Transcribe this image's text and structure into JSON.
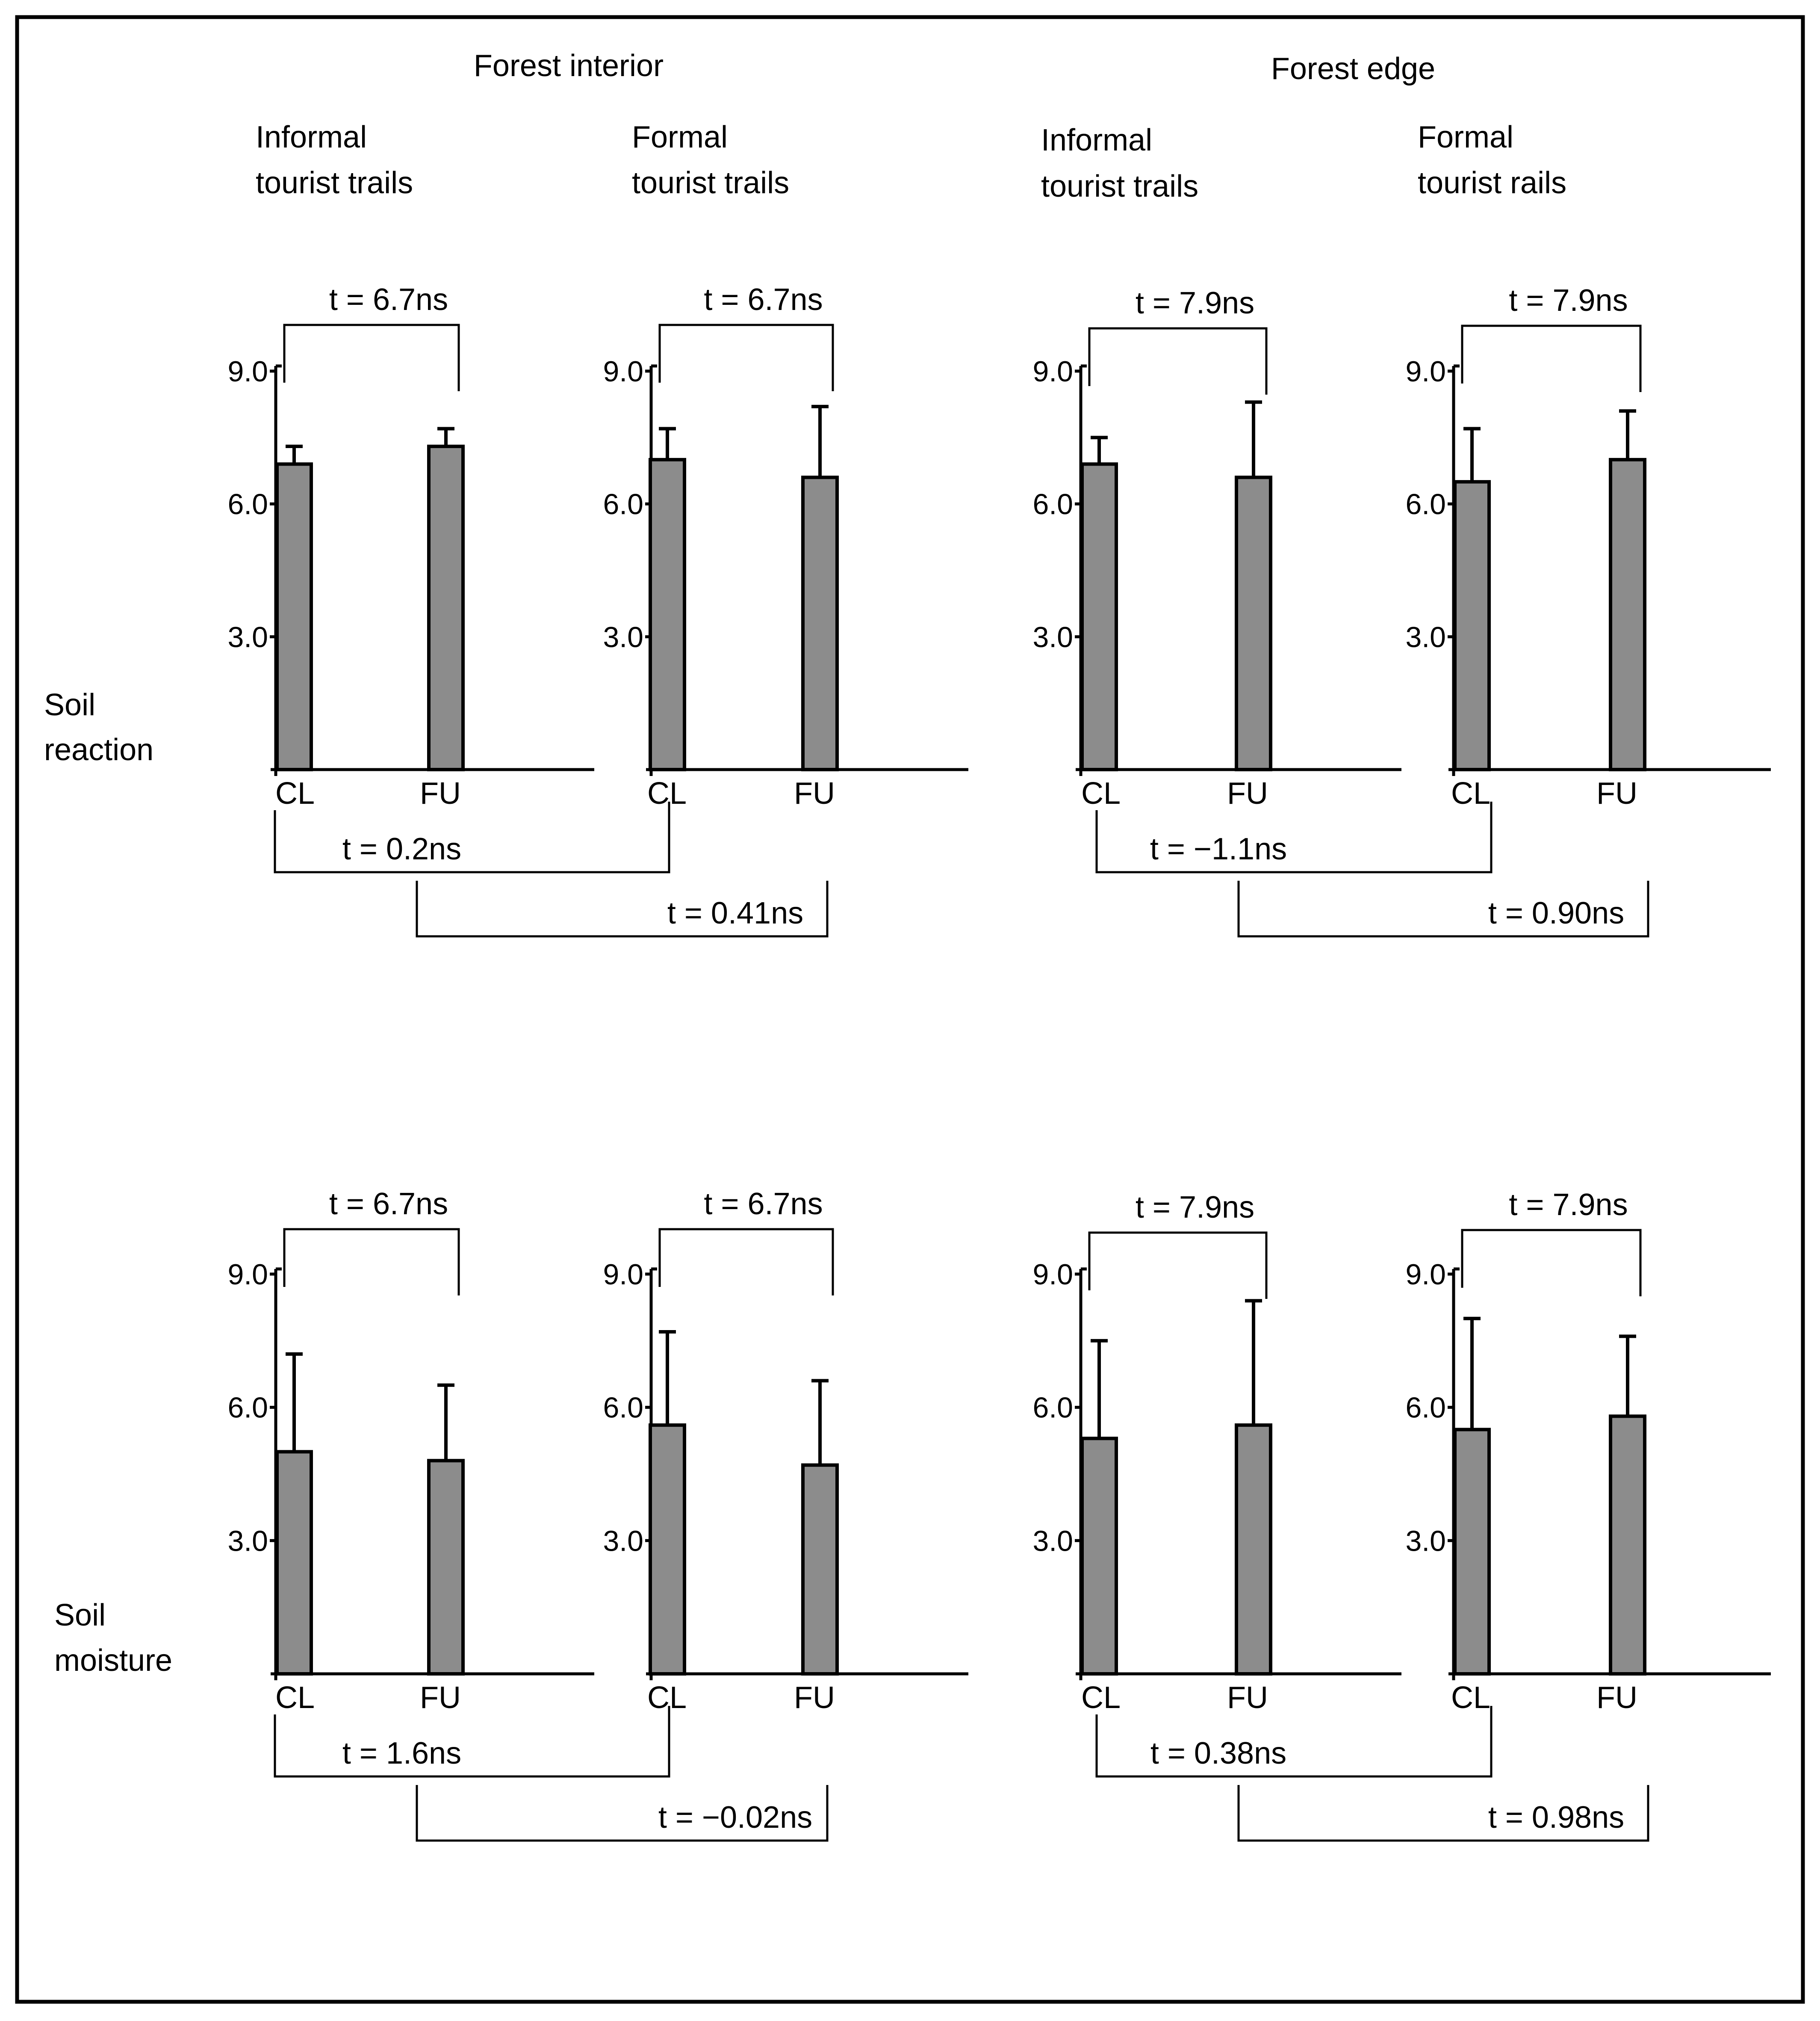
{
  "headers": {
    "forest_interior": "Forest  interior",
    "forest_edge": "Forest edge",
    "fi_informal": [
      "Informal",
      "tourist trails"
    ],
    "fi_formal": [
      "Formal",
      "tourist trails"
    ],
    "fe_informal": [
      "Informal",
      "tourist trails"
    ],
    "fe_formal": [
      "Formal",
      "tourist rails"
    ]
  },
  "row_labels": {
    "soil_reaction": [
      "Soil",
      "reaction"
    ],
    "soil_moisture": [
      "Soil",
      "moisture"
    ]
  },
  "chart_data": [
    {
      "type": "bar",
      "title": "Soil reaction",
      "groups": [
        "Forest interior",
        "Forest edge"
      ],
      "ylim": [
        0,
        9.0
      ],
      "yticks": [
        "3.0",
        "6.0",
        "9.0"
      ],
      "panels": [
        {
          "name": "Informal tourist trails (interior)",
          "categories": [
            "CL",
            "FU"
          ],
          "values": [
            6.9,
            7.3
          ],
          "errors": [
            0.4,
            0.4
          ],
          "t_test": "t = 6.7ns"
        },
        {
          "name": "Formal tourist trails (interior)",
          "categories": [
            "CL",
            "FU"
          ],
          "values": [
            7.0,
            6.6
          ],
          "errors": [
            0.7,
            1.6
          ],
          "t_test": "t = 6.7ns"
        },
        {
          "name": "Informal tourist trails (edge)",
          "categories": [
            "CL",
            "FU"
          ],
          "values": [
            6.9,
            6.6
          ],
          "errors": [
            0.6,
            1.7
          ],
          "t_test": "t = 7.9ns"
        },
        {
          "name": "Formal tourist rails (edge)",
          "categories": [
            "CL",
            "FU"
          ],
          "values": [
            6.5,
            7.0
          ],
          "errors": [
            1.2,
            1.1
          ],
          "t_test": "t = 7.9ns"
        }
      ],
      "cross_tests": [
        "t = 0.2ns",
        "t = 0.41ns",
        "t = −1.1ns",
        "t = 0.90ns"
      ]
    },
    {
      "type": "bar",
      "title": "Soil moisture",
      "groups": [
        "Forest interior",
        "Forest edge"
      ],
      "ylim": [
        0,
        9.0
      ],
      "yticks": [
        "3.0",
        "6.0",
        "9.0"
      ],
      "panels": [
        {
          "name": "Informal tourist trails (interior)",
          "categories": [
            "CL",
            "FU"
          ],
          "values": [
            5.0,
            4.8
          ],
          "errors": [
            2.2,
            1.7
          ],
          "t_test": "t = 6.7ns"
        },
        {
          "name": "Formal tourist trails (interior)",
          "categories": [
            "CL",
            "FU"
          ],
          "values": [
            5.6,
            4.7
          ],
          "errors": [
            2.1,
            1.9
          ],
          "t_test": "t = 6.7ns"
        },
        {
          "name": "Informal tourist trails (edge)",
          "categories": [
            "CL",
            "FU"
          ],
          "values": [
            5.3,
            5.6
          ],
          "errors": [
            2.2,
            2.8
          ],
          "t_test": "t = 7.9ns"
        },
        {
          "name": "Formal tourist rails (edge)",
          "categories": [
            "CL",
            "FU"
          ],
          "values": [
            5.5,
            5.8
          ],
          "errors": [
            2.5,
            1.8
          ],
          "t_test": "t = 7.9ns"
        }
      ],
      "cross_tests": [
        "t = 1.6ns",
        "t = −0.02ns",
        "t = 0.38ns",
        "t = 0.98ns"
      ]
    }
  ]
}
